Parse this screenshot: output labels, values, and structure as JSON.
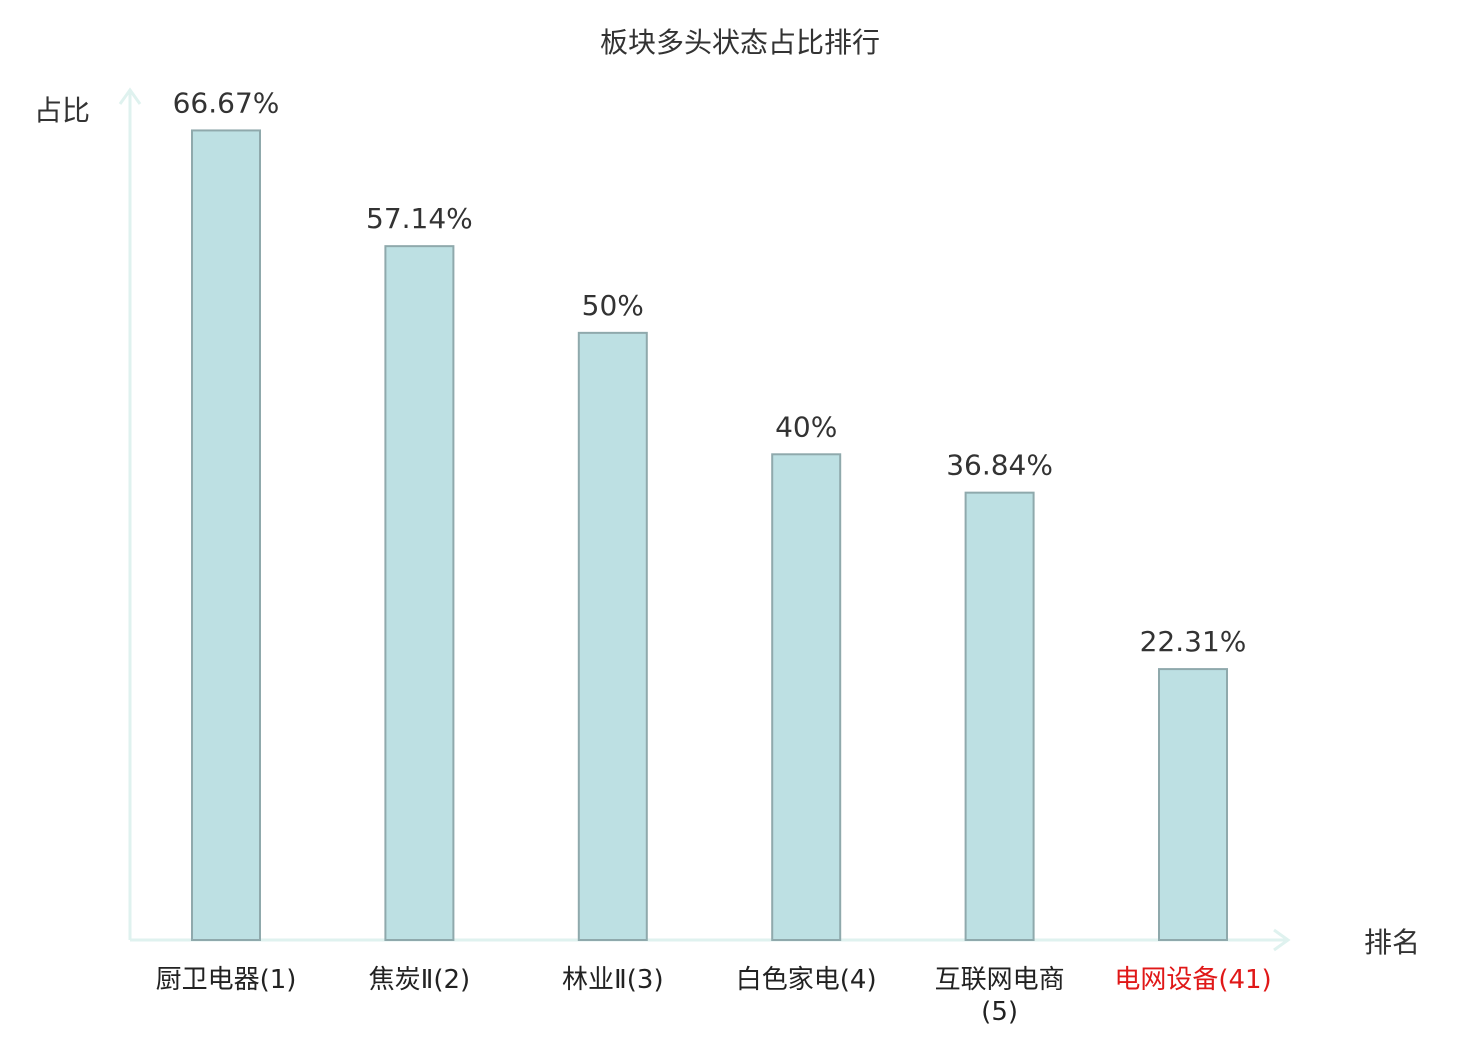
{
  "chart_data": {
    "type": "bar",
    "title": "板块多头状态占比排行",
    "y_label": "占比",
    "x_label": "排名",
    "categories": [
      "厨卫电器(1)",
      "焦炭Ⅱ(2)",
      "林业Ⅱ(3)",
      "白色家电(4)",
      "互联网电商(5)",
      "电网设备(41)"
    ],
    "category_colors": [
      "#222222",
      "#222222",
      "#222222",
      "#222222",
      "#222222",
      "#e01818"
    ],
    "values": [
      66.67,
      57.14,
      50,
      40,
      36.84,
      22.31
    ],
    "value_labels": [
      "66.67%",
      "57.14%",
      "50%",
      "40%",
      "36.84%",
      "22.31%"
    ],
    "color": "#bde0e3",
    "edge_color": "#8fa9ac",
    "axis_color": "#dff2ef",
    "ylim": [
      0,
      70
    ]
  }
}
